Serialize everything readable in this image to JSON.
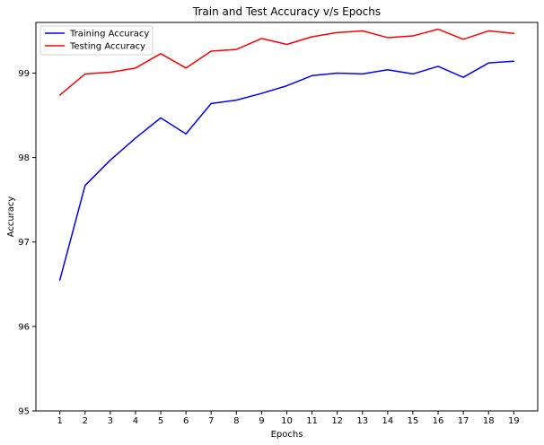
{
  "chart_data": {
    "type": "line",
    "title": "Train and Test Accuracy v/s Epochs",
    "xlabel": "Epochs",
    "ylabel": "Accuracy",
    "x": [
      1,
      2,
      3,
      4,
      5,
      6,
      7,
      8,
      9,
      10,
      11,
      12,
      13,
      14,
      15,
      16,
      17,
      18,
      19
    ],
    "ylim": [
      95,
      99.6
    ],
    "yticks": [
      95,
      96,
      97,
      98,
      99
    ],
    "grid": false,
    "legend_position": "top-left",
    "series": [
      {
        "name": "Training Accuracy",
        "color": "#0000ff",
        "values": [
          96.55,
          97.67,
          97.97,
          98.23,
          98.47,
          98.28,
          98.64,
          98.68,
          98.76,
          98.85,
          98.97,
          99.0,
          98.99,
          99.04,
          98.99,
          99.08,
          98.95,
          99.12,
          99.14
        ]
      },
      {
        "name": "Testing Accuracy",
        "color": "#ff0000",
        "values": [
          98.74,
          98.99,
          99.01,
          99.06,
          99.23,
          99.06,
          99.26,
          99.28,
          99.41,
          99.34,
          99.43,
          99.48,
          99.5,
          99.42,
          99.44,
          99.52,
          99.4,
          99.5,
          99.47
        ]
      }
    ]
  }
}
